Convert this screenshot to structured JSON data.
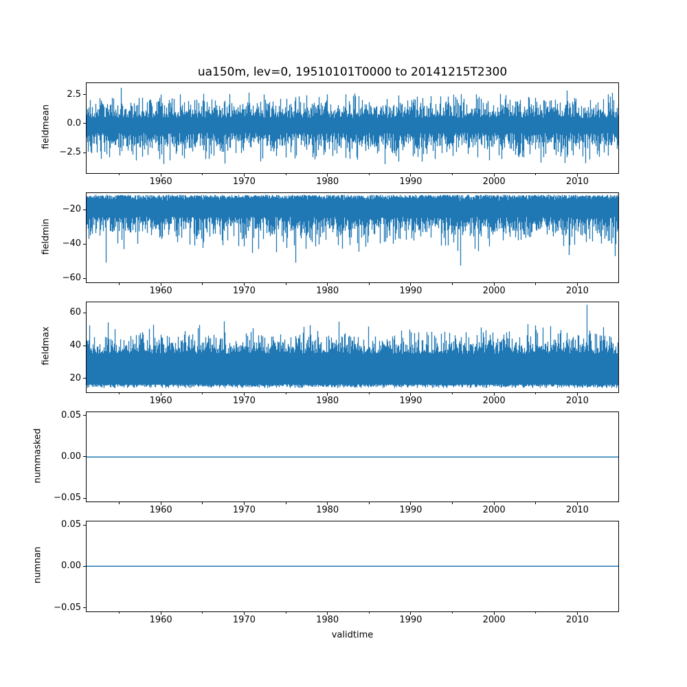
{
  "figure": {
    "background": "#ffffff",
    "text_color": "#000000",
    "line_color": "#1f77b4"
  },
  "chart_data": {
    "type": "line",
    "title": "ua150m, lev=0, 19510101T0000 to 20141215T2300",
    "xlabel": "validtime",
    "x_range": [
      1951,
      2015
    ],
    "x_major_ticks": [
      {
        "year": 1960,
        "label": "1960"
      },
      {
        "year": 1970,
        "label": "1970"
      },
      {
        "year": 1980,
        "label": "1980"
      },
      {
        "year": 1990,
        "label": "1990"
      },
      {
        "year": 2000,
        "label": "2000"
      },
      {
        "year": 2010,
        "label": "2010"
      }
    ],
    "x_minor_ticks": [
      1955,
      1965,
      1975,
      1985,
      1995,
      2005
    ],
    "grid": false,
    "legend": false,
    "subplots": [
      {
        "name": "fieldmean",
        "ylabel": "fieldmean",
        "style": "noise",
        "ylim": [
          -4.32,
          3.57
        ],
        "yticks": [
          {
            "value": 2.5,
            "label": "2.5"
          },
          {
            "value": 0.0,
            "label": "0.0"
          },
          {
            "value": -2.5,
            "label": "−2.5"
          }
        ],
        "summary": {
          "approx_mean": -0.3,
          "dense_band": [
            -2.2,
            1.5
          ],
          "min": -4.0,
          "max": 3.3
        },
        "envelope_model": {
          "high": {
            "base": 0.5,
            "amp": 1.5,
            "spike_prob": 0.01,
            "spike_amp": 0.8
          },
          "low": {
            "base": -0.8,
            "amp": -1.8,
            "spike_prob": 0.012,
            "spike_amp": -0.9
          },
          "clamp": [
            -4.05,
            3.3
          ]
        }
      },
      {
        "name": "fieldmin",
        "ylabel": "fieldmin",
        "style": "noise",
        "ylim": [
          -62.8,
          -9.8
        ],
        "yticks": [
          {
            "value": -20,
            "label": "−20"
          },
          {
            "value": -40,
            "label": "−40"
          },
          {
            "value": -60,
            "label": "−60"
          }
        ],
        "summary": {
          "dense_band": [
            -38,
            -11
          ],
          "min": -60.5,
          "max": -10.3
        },
        "envelope_model": {
          "high": {
            "base": -11.2,
            "amp": -2.0,
            "spike_prob": 0,
            "spike_amp": 0
          },
          "low": {
            "base": -24,
            "amp": -13,
            "spike_prob": 0.035,
            "spike_amp": -17
          },
          "clamp": [
            -60.5,
            -10.3
          ]
        }
      },
      {
        "name": "fieldmax",
        "ylabel": "fieldmax",
        "style": "noise",
        "ylim": [
          11.4,
          66.7
        ],
        "yticks": [
          {
            "value": 60,
            "label": "60"
          },
          {
            "value": 40,
            "label": "40"
          },
          {
            "value": 20,
            "label": "20"
          }
        ],
        "summary": {
          "dense_band": [
            16,
            44
          ],
          "min": 14.3,
          "max": 64.8
        },
        "envelope_model": {
          "high": {
            "base": 35,
            "amp": 11,
            "spike_prob": 0.035,
            "spike_amp": 14
          },
          "low": {
            "base": 16.5,
            "amp": -2.0,
            "spike_prob": 0,
            "spike_amp": 0
          },
          "clamp": [
            14.3,
            64.8
          ]
        }
      },
      {
        "name": "nummasked",
        "ylabel": "nummasked",
        "style": "flat",
        "value": 0.0,
        "ylim": [
          -0.055,
          0.055
        ],
        "yticks": [
          {
            "value": 0.05,
            "label": "0.05"
          },
          {
            "value": 0.0,
            "label": "0.00"
          },
          {
            "value": -0.05,
            "label": "−0.05"
          }
        ],
        "summary": {
          "constant": 0.0
        }
      },
      {
        "name": "numnan",
        "ylabel": "numnan",
        "style": "flat",
        "value": 0.0,
        "ylim": [
          -0.055,
          0.055
        ],
        "yticks": [
          {
            "value": 0.05,
            "label": "0.05"
          },
          {
            "value": 0.0,
            "label": "0.00"
          },
          {
            "value": -0.05,
            "label": "−0.05"
          }
        ],
        "summary": {
          "constant": 0.0
        }
      }
    ]
  }
}
